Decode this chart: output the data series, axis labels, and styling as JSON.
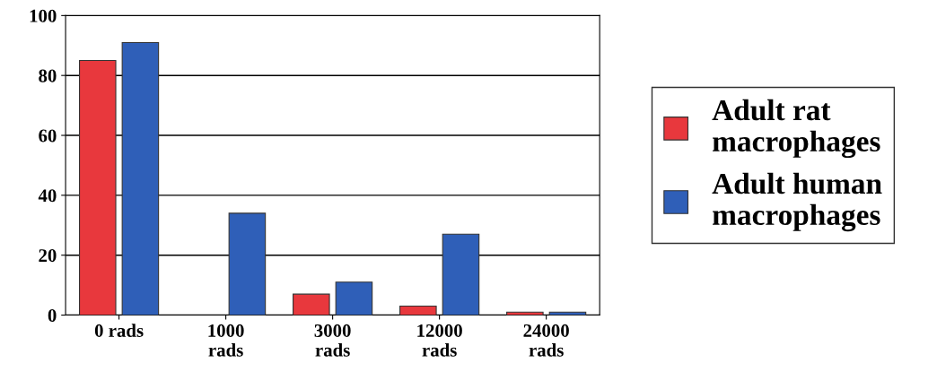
{
  "chart_data": {
    "type": "bar",
    "categories": [
      "0 rads",
      "1000 rads",
      "3000 rads",
      "12000 rads",
      "24000 rads"
    ],
    "series": [
      {
        "name": "Adult rat macrophages",
        "color": "#e8383d",
        "values": [
          85,
          null,
          7,
          3,
          1
        ]
      },
      {
        "name": "Adult human macrophages",
        "color": "#2f5fb8",
        "values": [
          91,
          34,
          11,
          27,
          1
        ]
      }
    ],
    "ylim": [
      0,
      100
    ],
    "yticks": [
      0,
      20,
      40,
      60,
      80,
      100
    ],
    "grid": "y",
    "legend": "right"
  }
}
